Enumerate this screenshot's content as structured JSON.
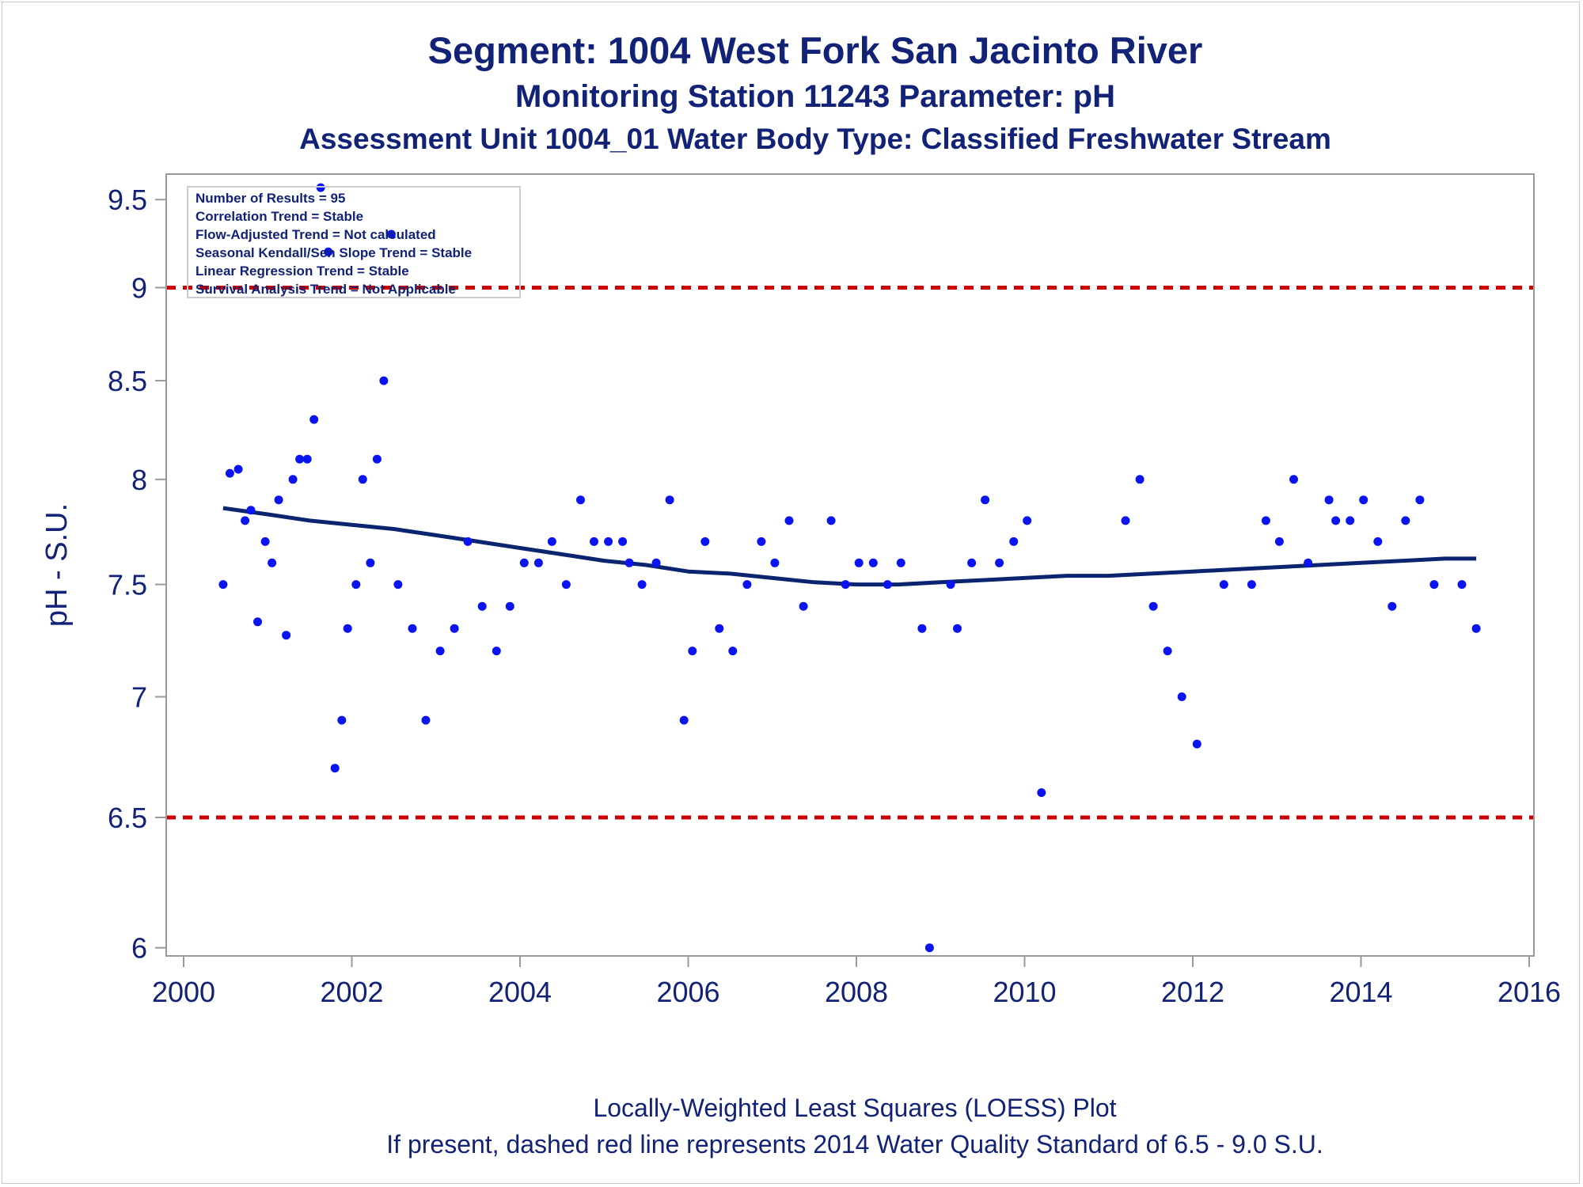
{
  "titles": {
    "line1": "Segment: 1004  West Fork San Jacinto River",
    "line2": "Monitoring Station 11243 Parameter: pH",
    "line3": "Assessment Unit 1004_01   Water Body Type: Classified Freshwater Stream"
  },
  "footnotes": {
    "line1": "Locally-Weighted Least Squares (LOESS) Plot",
    "line2": "If present, dashed red line represents 2014 Water Quality Standard of 6.5 - 9.0 S.U."
  },
  "stats_box": [
    "Number of Results = 95",
    "Correlation Trend = Stable",
    "Flow-Adjusted Trend = Not calculated",
    "Seasonal Kendall/Sen Slope Trend = Stable",
    "Linear Regression Trend = Stable",
    "Survival Analysis Trend = Not Applicable"
  ],
  "colors": {
    "text": "#112277",
    "points": "#0a14f0",
    "loess": "#0a2470",
    "standard_line": "#cc0000",
    "axis": "#999999"
  },
  "chart_data": {
    "type": "scatter",
    "ylabel": "pH - S.U.",
    "xlabel": "",
    "xlim": [
      2000,
      2016
    ],
    "ylim": [
      5.97,
      9.65
    ],
    "y_scale": "log",
    "x_ticks": [
      2000,
      2002,
      2004,
      2006,
      2008,
      2010,
      2012,
      2014,
      2016
    ],
    "x_tick_labels": [
      "2000",
      "2002",
      "2004",
      "2006",
      "2008",
      "2010",
      "2012",
      "2014",
      "2016"
    ],
    "y_ticks": [
      6,
      6.5,
      7,
      7.5,
      8,
      8.5,
      9,
      9.5
    ],
    "y_tick_labels": [
      "6",
      "6.5",
      "7",
      "7.5",
      "8",
      "8.5",
      "9",
      "9.5"
    ],
    "reference_lines": [
      6.5,
      9.0
    ],
    "points": [
      [
        2000.47,
        7.5
      ],
      [
        2000.55,
        8.03
      ],
      [
        2000.65,
        8.05
      ],
      [
        2000.73,
        7.8
      ],
      [
        2000.8,
        7.85
      ],
      [
        2000.88,
        7.33
      ],
      [
        2000.97,
        7.7
      ],
      [
        2001.05,
        7.6
      ],
      [
        2001.13,
        7.9
      ],
      [
        2001.22,
        7.27
      ],
      [
        2001.3,
        8.0
      ],
      [
        2001.38,
        8.1
      ],
      [
        2001.47,
        8.1
      ],
      [
        2001.55,
        8.3
      ],
      [
        2001.63,
        9.57
      ],
      [
        2001.72,
        9.2
      ],
      [
        2001.8,
        6.7
      ],
      [
        2001.88,
        6.9
      ],
      [
        2001.95,
        7.3
      ],
      [
        2002.05,
        7.5
      ],
      [
        2002.13,
        8.0
      ],
      [
        2002.22,
        7.6
      ],
      [
        2002.3,
        8.1
      ],
      [
        2002.38,
        8.5
      ],
      [
        2002.47,
        9.3
      ],
      [
        2002.55,
        7.5
      ],
      [
        2002.72,
        7.3
      ],
      [
        2002.88,
        6.9
      ],
      [
        2003.05,
        7.2
      ],
      [
        2003.22,
        7.3
      ],
      [
        2003.38,
        7.7
      ],
      [
        2003.55,
        7.4
      ],
      [
        2003.72,
        7.2
      ],
      [
        2003.88,
        7.4
      ],
      [
        2004.05,
        7.6
      ],
      [
        2004.22,
        7.6
      ],
      [
        2004.38,
        7.7
      ],
      [
        2004.55,
        7.5
      ],
      [
        2004.72,
        7.9
      ],
      [
        2004.88,
        7.7
      ],
      [
        2005.05,
        7.7
      ],
      [
        2005.22,
        7.7
      ],
      [
        2005.3,
        7.6
      ],
      [
        2005.45,
        7.5
      ],
      [
        2005.62,
        7.6
      ],
      [
        2005.78,
        7.9
      ],
      [
        2005.95,
        6.9
      ],
      [
        2006.05,
        7.2
      ],
      [
        2006.2,
        7.7
      ],
      [
        2006.37,
        7.3
      ],
      [
        2006.53,
        7.2
      ],
      [
        2006.7,
        7.5
      ],
      [
        2006.87,
        7.7
      ],
      [
        2007.03,
        7.6
      ],
      [
        2007.2,
        7.8
      ],
      [
        2007.37,
        7.4
      ],
      [
        2007.7,
        7.8
      ],
      [
        2007.87,
        7.5
      ],
      [
        2008.03,
        7.6
      ],
      [
        2008.2,
        7.6
      ],
      [
        2008.37,
        7.5
      ],
      [
        2008.53,
        7.6
      ],
      [
        2008.78,
        7.3
      ],
      [
        2008.87,
        6.0
      ],
      [
        2009.12,
        7.5
      ],
      [
        2009.2,
        7.3
      ],
      [
        2009.37,
        7.6
      ],
      [
        2009.53,
        7.9
      ],
      [
        2009.7,
        7.6
      ],
      [
        2009.87,
        7.7
      ],
      [
        2010.03,
        7.8
      ],
      [
        2010.2,
        6.6
      ],
      [
        2011.2,
        7.8
      ],
      [
        2011.37,
        8.0
      ],
      [
        2011.53,
        7.4
      ],
      [
        2011.7,
        7.2
      ],
      [
        2011.87,
        7.0
      ],
      [
        2012.05,
        6.8
      ],
      [
        2012.37,
        7.5
      ],
      [
        2012.7,
        7.5
      ],
      [
        2012.87,
        7.8
      ],
      [
        2013.03,
        7.7
      ],
      [
        2013.2,
        8.0
      ],
      [
        2013.37,
        7.6
      ],
      [
        2013.62,
        7.9
      ],
      [
        2013.7,
        7.8
      ],
      [
        2013.87,
        7.8
      ],
      [
        2014.03,
        7.9
      ],
      [
        2014.2,
        7.7
      ],
      [
        2014.37,
        7.4
      ],
      [
        2014.53,
        7.8
      ],
      [
        2014.7,
        7.9
      ],
      [
        2014.87,
        7.5
      ],
      [
        2015.2,
        7.5
      ],
      [
        2015.37,
        7.3
      ]
    ],
    "loess": [
      [
        2000.47,
        7.86
      ],
      [
        2001.0,
        7.83
      ],
      [
        2001.5,
        7.8
      ],
      [
        2002.0,
        7.78
      ],
      [
        2002.5,
        7.76
      ],
      [
        2003.0,
        7.73
      ],
      [
        2003.5,
        7.7
      ],
      [
        2004.0,
        7.67
      ],
      [
        2004.5,
        7.64
      ],
      [
        2005.0,
        7.61
      ],
      [
        2005.5,
        7.59
      ],
      [
        2006.0,
        7.56
      ],
      [
        2006.5,
        7.55
      ],
      [
        2007.0,
        7.53
      ],
      [
        2007.5,
        7.51
      ],
      [
        2008.0,
        7.5
      ],
      [
        2008.5,
        7.5
      ],
      [
        2009.0,
        7.51
      ],
      [
        2009.5,
        7.52
      ],
      [
        2010.0,
        7.53
      ],
      [
        2010.5,
        7.54
      ],
      [
        2011.0,
        7.54
      ],
      [
        2011.5,
        7.55
      ],
      [
        2012.0,
        7.56
      ],
      [
        2012.5,
        7.57
      ],
      [
        2013.0,
        7.58
      ],
      [
        2013.5,
        7.59
      ],
      [
        2014.0,
        7.6
      ],
      [
        2014.5,
        7.61
      ],
      [
        2015.0,
        7.62
      ],
      [
        2015.37,
        7.62
      ]
    ]
  }
}
